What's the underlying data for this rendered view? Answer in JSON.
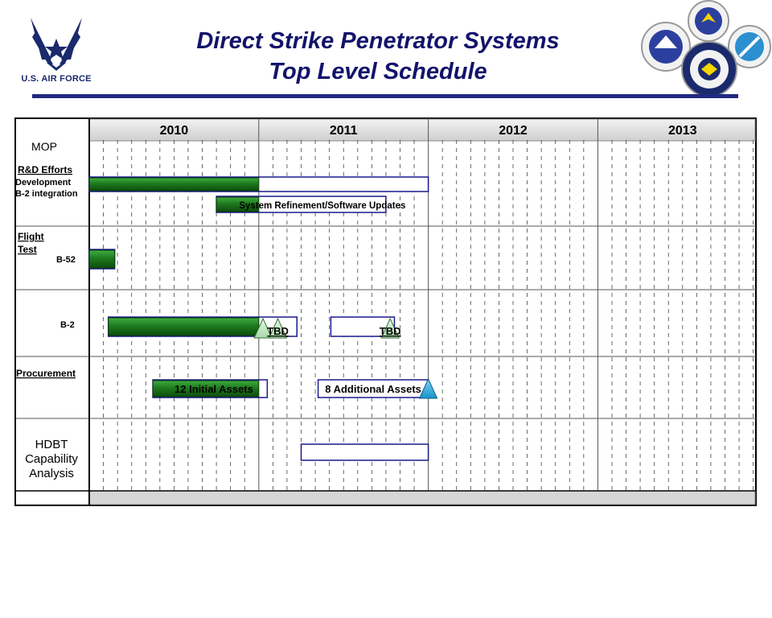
{
  "header": {
    "title_line1": "Direct Strike Penetrator Systems",
    "title_line2": "Top Level Schedule",
    "logo_text": "U.S. AIR FORCE",
    "seal_names": [
      "afrl-seal-icon",
      "air-armament-center-seal-icon",
      "aeronautical-systems-seal-icon",
      "dtra-seal-icon"
    ]
  },
  "colors": {
    "title": "#13136b",
    "completed_bar": "#1e7a1e",
    "planned_bar_border": "#1a1a8c",
    "milestone_green": "#c8eec8",
    "milestone_blue": "#29a9e0",
    "header_band": "#d6d6d6"
  },
  "chart_data": {
    "type": "gantt",
    "years": [
      "2010",
      "2011",
      "2012",
      "2013"
    ],
    "time_units": "quarters from start of 2010",
    "rows": [
      {
        "label": "MOP",
        "style": "section-plain"
      },
      {
        "label": "R&D Efforts",
        "style": "section-underlined"
      },
      {
        "label": "Development",
        "style": "sub"
      },
      {
        "label": "B-2 integration",
        "style": "sub"
      },
      {
        "label": "Flight",
        "style": "section-underlined"
      },
      {
        "label": "Test",
        "style": "section-underlined"
      },
      {
        "label": "B-52",
        "style": "sub"
      },
      {
        "label": "B-2",
        "style": "sub"
      },
      {
        "label": "Procurement",
        "style": "section-underlined"
      },
      {
        "label": "HDBT",
        "style": "section-large"
      },
      {
        "label": "Capability",
        "style": "section-large"
      },
      {
        "label": "Analysis",
        "style": "section-large"
      }
    ],
    "bars": [
      {
        "row": "Development",
        "start": 0.0,
        "complete_end": 4.0,
        "planned_end": 8.0,
        "text": ""
      },
      {
        "row": "B-2 integration",
        "start": 3.0,
        "complete_end": 4.0,
        "planned_end": 7.0,
        "text": "System Refinement/Software Updates"
      },
      {
        "row": "B-52",
        "start": 0.0,
        "complete_end": 0.6,
        "planned_end": 0.6,
        "text": ""
      },
      {
        "row": "B-2",
        "start": 0.45,
        "complete_end": 4.0,
        "planned_end": 4.9,
        "text": ""
      },
      {
        "row": "B-2",
        "start": 5.7,
        "complete_end": 5.7,
        "planned_end": 7.2,
        "text": ""
      },
      {
        "row": "Procurement",
        "start": 1.5,
        "complete_end": 4.0,
        "planned_end": 4.2,
        "text": "12 Initial Assets"
      },
      {
        "row": "Procurement",
        "start": 5.4,
        "complete_end": 5.4,
        "planned_end": 8.0,
        "text": "8 Additional Assets"
      },
      {
        "row": "HDBT",
        "start": 5.0,
        "complete_end": 5.0,
        "planned_end": 8.0,
        "text": ""
      }
    ],
    "milestones": [
      {
        "row": "B-2",
        "at": 4.1,
        "color": "green",
        "text": ""
      },
      {
        "row": "B-2",
        "at": 4.45,
        "color": "green",
        "text": "TBD"
      },
      {
        "row": "B-2",
        "at": 7.1,
        "color": "green",
        "text": "TBD"
      },
      {
        "row": "Procurement",
        "at": 8.0,
        "color": "blue",
        "text": ""
      }
    ]
  }
}
